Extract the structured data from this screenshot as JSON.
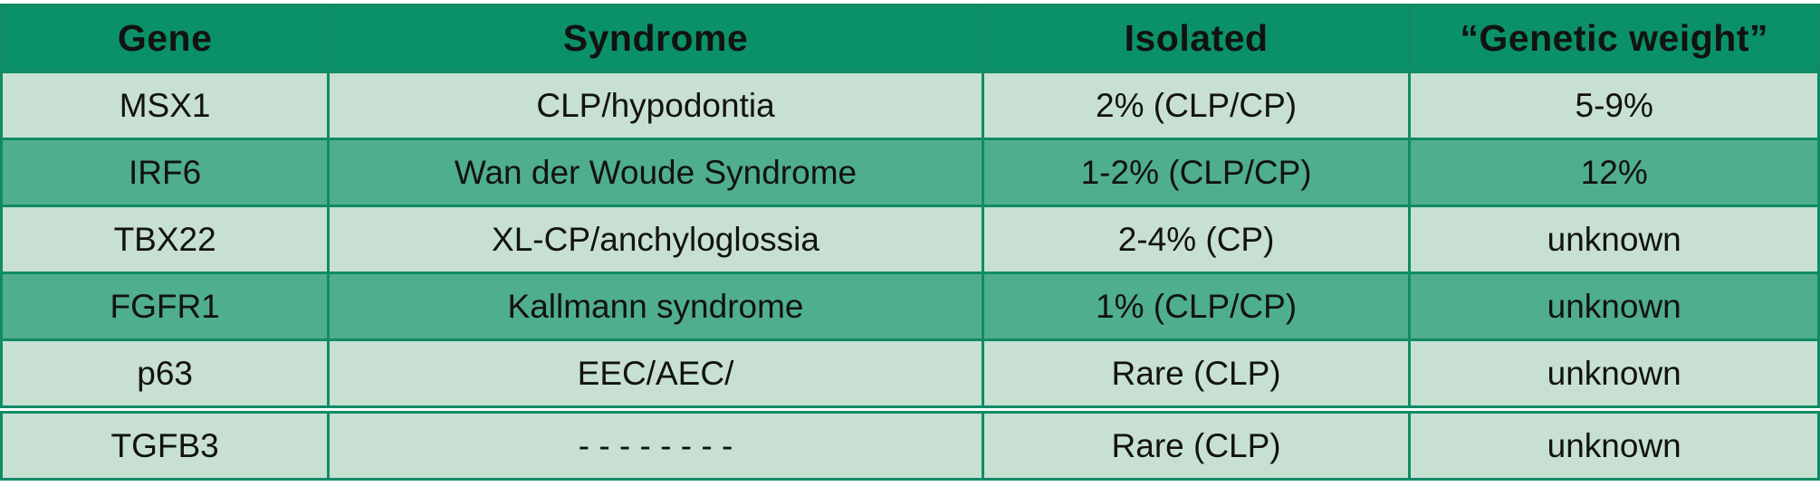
{
  "table": {
    "columns": [
      {
        "label": "Gene"
      },
      {
        "label": "Syndrome"
      },
      {
        "label": "Isolated"
      },
      {
        "label": "“Genetic weight”"
      }
    ],
    "rows": [
      {
        "gene": "MSX1",
        "syndrome": "CLP/hypodontia",
        "isolated": "2% (CLP/CP)",
        "genetic_weight": "5-9%",
        "shade": "light"
      },
      {
        "gene": "IRF6",
        "syndrome": "Wan der Woude Syndrome",
        "isolated": "1-2% (CLP/CP)",
        "genetic_weight": "12%",
        "shade": "medium"
      },
      {
        "gene": "TBX22",
        "syndrome": "XL-CP/anchyloglossia",
        "isolated": "2-4% (CP)",
        "genetic_weight": "unknown",
        "shade": "light"
      },
      {
        "gene": "FGFR1",
        "syndrome": "Kallmann syndrome",
        "isolated": "1% (CLP/CP)",
        "genetic_weight": "unknown",
        "shade": "medium"
      },
      {
        "gene": "p63",
        "syndrome": "EEC/AEC/",
        "isolated": "Rare (CLP)",
        "genetic_weight": "unknown",
        "shade": "light"
      },
      {
        "gene": "TGFB3",
        "syndrome": "- - - - - - - -",
        "isolated": "Rare (CLP)",
        "genetic_weight": "unknown",
        "shade": "light",
        "divider": "double"
      }
    ],
    "colors": {
      "header_bg": "#0b9168",
      "row_light": "#c7e0d2",
      "row_medium": "#4fae8e",
      "border": "#108b65",
      "text": "#121212"
    }
  }
}
